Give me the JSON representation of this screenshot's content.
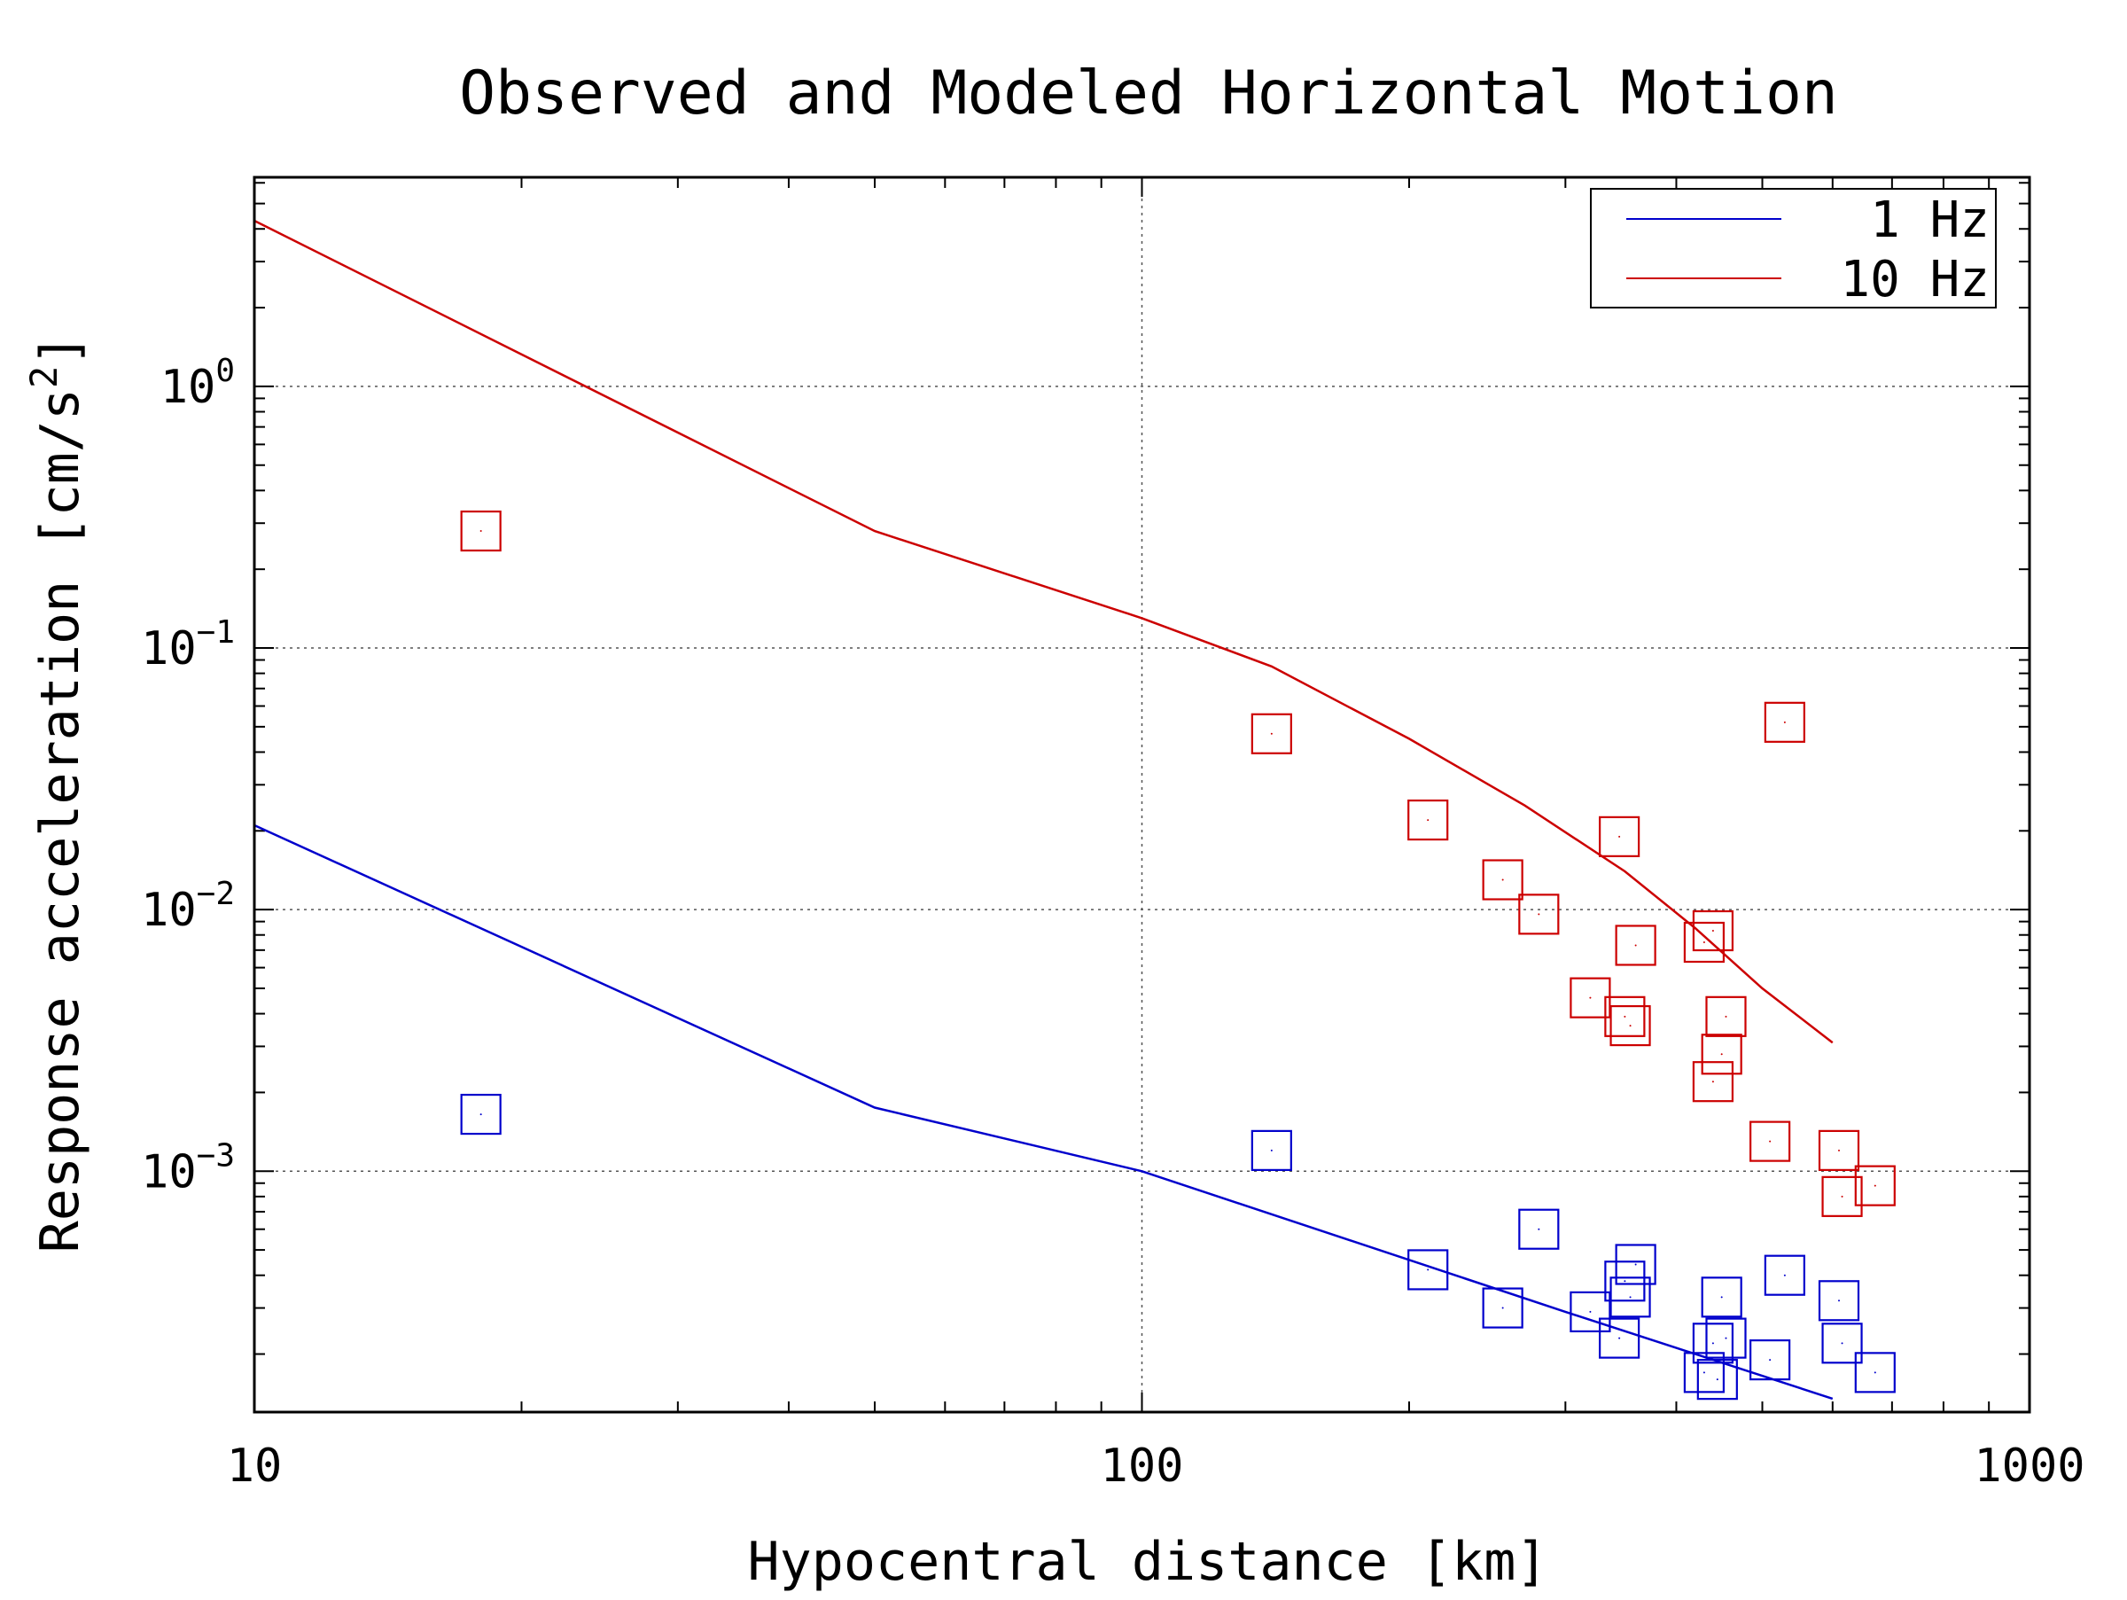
{
  "chart_data": {
    "type": "scatter",
    "title": "Observed and Modeled Horizontal Motion",
    "xlabel": "Hypocentral distance [km]",
    "ylabel_main": "Response acceleration [cm/s",
    "ylabel_sup": "2",
    "ylabel_end": "]",
    "x_scale": "log",
    "y_scale": "log",
    "xlim": [
      10,
      1000
    ],
    "ylim": [
      0.00012,
      6.3
    ],
    "x_ticks": [
      {
        "value": 10,
        "label": "10"
      },
      {
        "value": 100,
        "label": "100"
      },
      {
        "value": 1000,
        "label": "1000"
      }
    ],
    "y_ticks": [
      {
        "value": 0.001,
        "base": "10",
        "exp": "−3"
      },
      {
        "value": 0.01,
        "base": "10",
        "exp": "−2"
      },
      {
        "value": 0.1,
        "base": "10",
        "exp": "−1"
      },
      {
        "value": 1,
        "base": "10",
        "exp": "0"
      }
    ],
    "grid": true,
    "legend_position": "top-right",
    "series": [
      {
        "name": "1 Hz",
        "color": "#0000cc",
        "model_line": [
          [
            10,
            0.021
          ],
          [
            50,
            0.00175
          ],
          [
            100,
            0.001
          ],
          [
            300,
            0.00029
          ],
          [
            600,
            0.000135
          ]
        ],
        "observed": [
          [
            18,
            0.00165
          ],
          [
            140,
            0.0012
          ],
          [
            210,
            0.00042
          ],
          [
            255,
            0.0003
          ],
          [
            280,
            0.0006
          ],
          [
            320,
            0.00029
          ],
          [
            345,
            0.00023
          ],
          [
            350,
            0.00038
          ],
          [
            355,
            0.00033
          ],
          [
            360,
            0.00044
          ],
          [
            430,
            0.00017
          ],
          [
            440,
            0.00022
          ],
          [
            445,
            0.00016
          ],
          [
            450,
            0.00033
          ],
          [
            455,
            0.00023
          ],
          [
            510,
            0.00019
          ],
          [
            530,
            0.0004
          ],
          [
            610,
            0.00032
          ],
          [
            615,
            0.00022
          ],
          [
            670,
            0.00017
          ]
        ]
      },
      {
        "name": "10 Hz",
        "color": "#cc0000",
        "model_line": [
          [
            10,
            4.3
          ],
          [
            50,
            0.28
          ],
          [
            100,
            0.13
          ],
          [
            140,
            0.085
          ],
          [
            200,
            0.045
          ],
          [
            270,
            0.025
          ],
          [
            350,
            0.014
          ],
          [
            420,
            0.0085
          ],
          [
            500,
            0.005
          ],
          [
            600,
            0.0031
          ]
        ],
        "observed": [
          [
            18,
            0.28
          ],
          [
            140,
            0.047
          ],
          [
            210,
            0.022
          ],
          [
            255,
            0.013
          ],
          [
            280,
            0.0096
          ],
          [
            320,
            0.0046
          ],
          [
            345,
            0.019
          ],
          [
            350,
            0.0039
          ],
          [
            355,
            0.0036
          ],
          [
            360,
            0.0073
          ],
          [
            430,
            0.0075
          ],
          [
            440,
            0.0083
          ],
          [
            440,
            0.0022
          ],
          [
            450,
            0.0028
          ],
          [
            455,
            0.0039
          ],
          [
            510,
            0.0013
          ],
          [
            530,
            0.052
          ],
          [
            610,
            0.0012
          ],
          [
            615,
            0.0008
          ],
          [
            670,
            0.00088
          ]
        ]
      }
    ]
  }
}
